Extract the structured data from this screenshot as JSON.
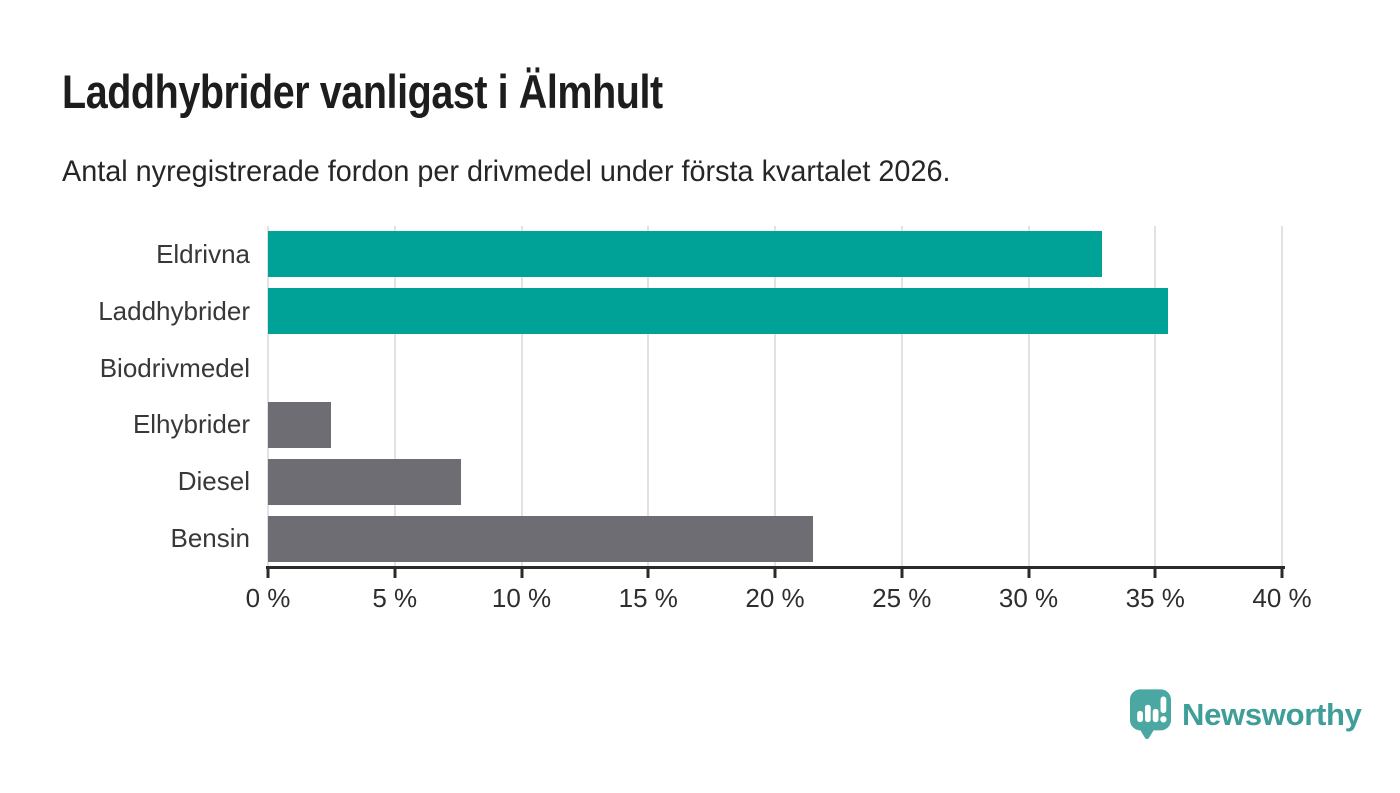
{
  "header": {
    "title": "Laddhybrider vanligast i Älmhult",
    "subtitle": "Antal nyregistrerade fordon per drivmedel under första kvartalet 2026."
  },
  "chart_data": {
    "type": "bar",
    "orientation": "horizontal",
    "title": "Laddhybrider vanligast i Älmhult",
    "subtitle": "Antal nyregistrerade fordon per drivmedel under första kvartalet 2026.",
    "categories": [
      "Eldrivna",
      "Laddhybrider",
      "Biodrivmedel",
      "Elhybrider",
      "Diesel",
      "Bensin"
    ],
    "values": [
      32.9,
      35.5,
      0,
      2.5,
      7.6,
      21.5
    ],
    "unit": "%",
    "bar_colors": [
      "#00a196",
      "#00a196",
      "#6e6d74",
      "#6e6d74",
      "#6e6d74",
      "#6e6d74"
    ],
    "highlight_color": "#00a196",
    "default_color": "#6e6d74",
    "xlabel": "",
    "ylabel": "",
    "xlim": [
      0,
      40
    ],
    "x_tick_values": [
      0,
      5,
      10,
      15,
      20,
      25,
      30,
      35,
      40
    ],
    "x_tick_labels": [
      "0 %",
      "5 %",
      "10 %",
      "15 %",
      "20 %",
      "25 %",
      "30 %",
      "35 %",
      "40 %"
    ],
    "grid": "vertical",
    "grid_color": "#e2e2e2",
    "axis_color": "#2b2b2b",
    "legend": "none"
  },
  "footer": {
    "brand": "Newsworthy",
    "brand_color": "#3f9e99",
    "logo_bubble_color": "#4aa7a1",
    "logo_icon": "newsworthy-bubble-chart-icon"
  }
}
